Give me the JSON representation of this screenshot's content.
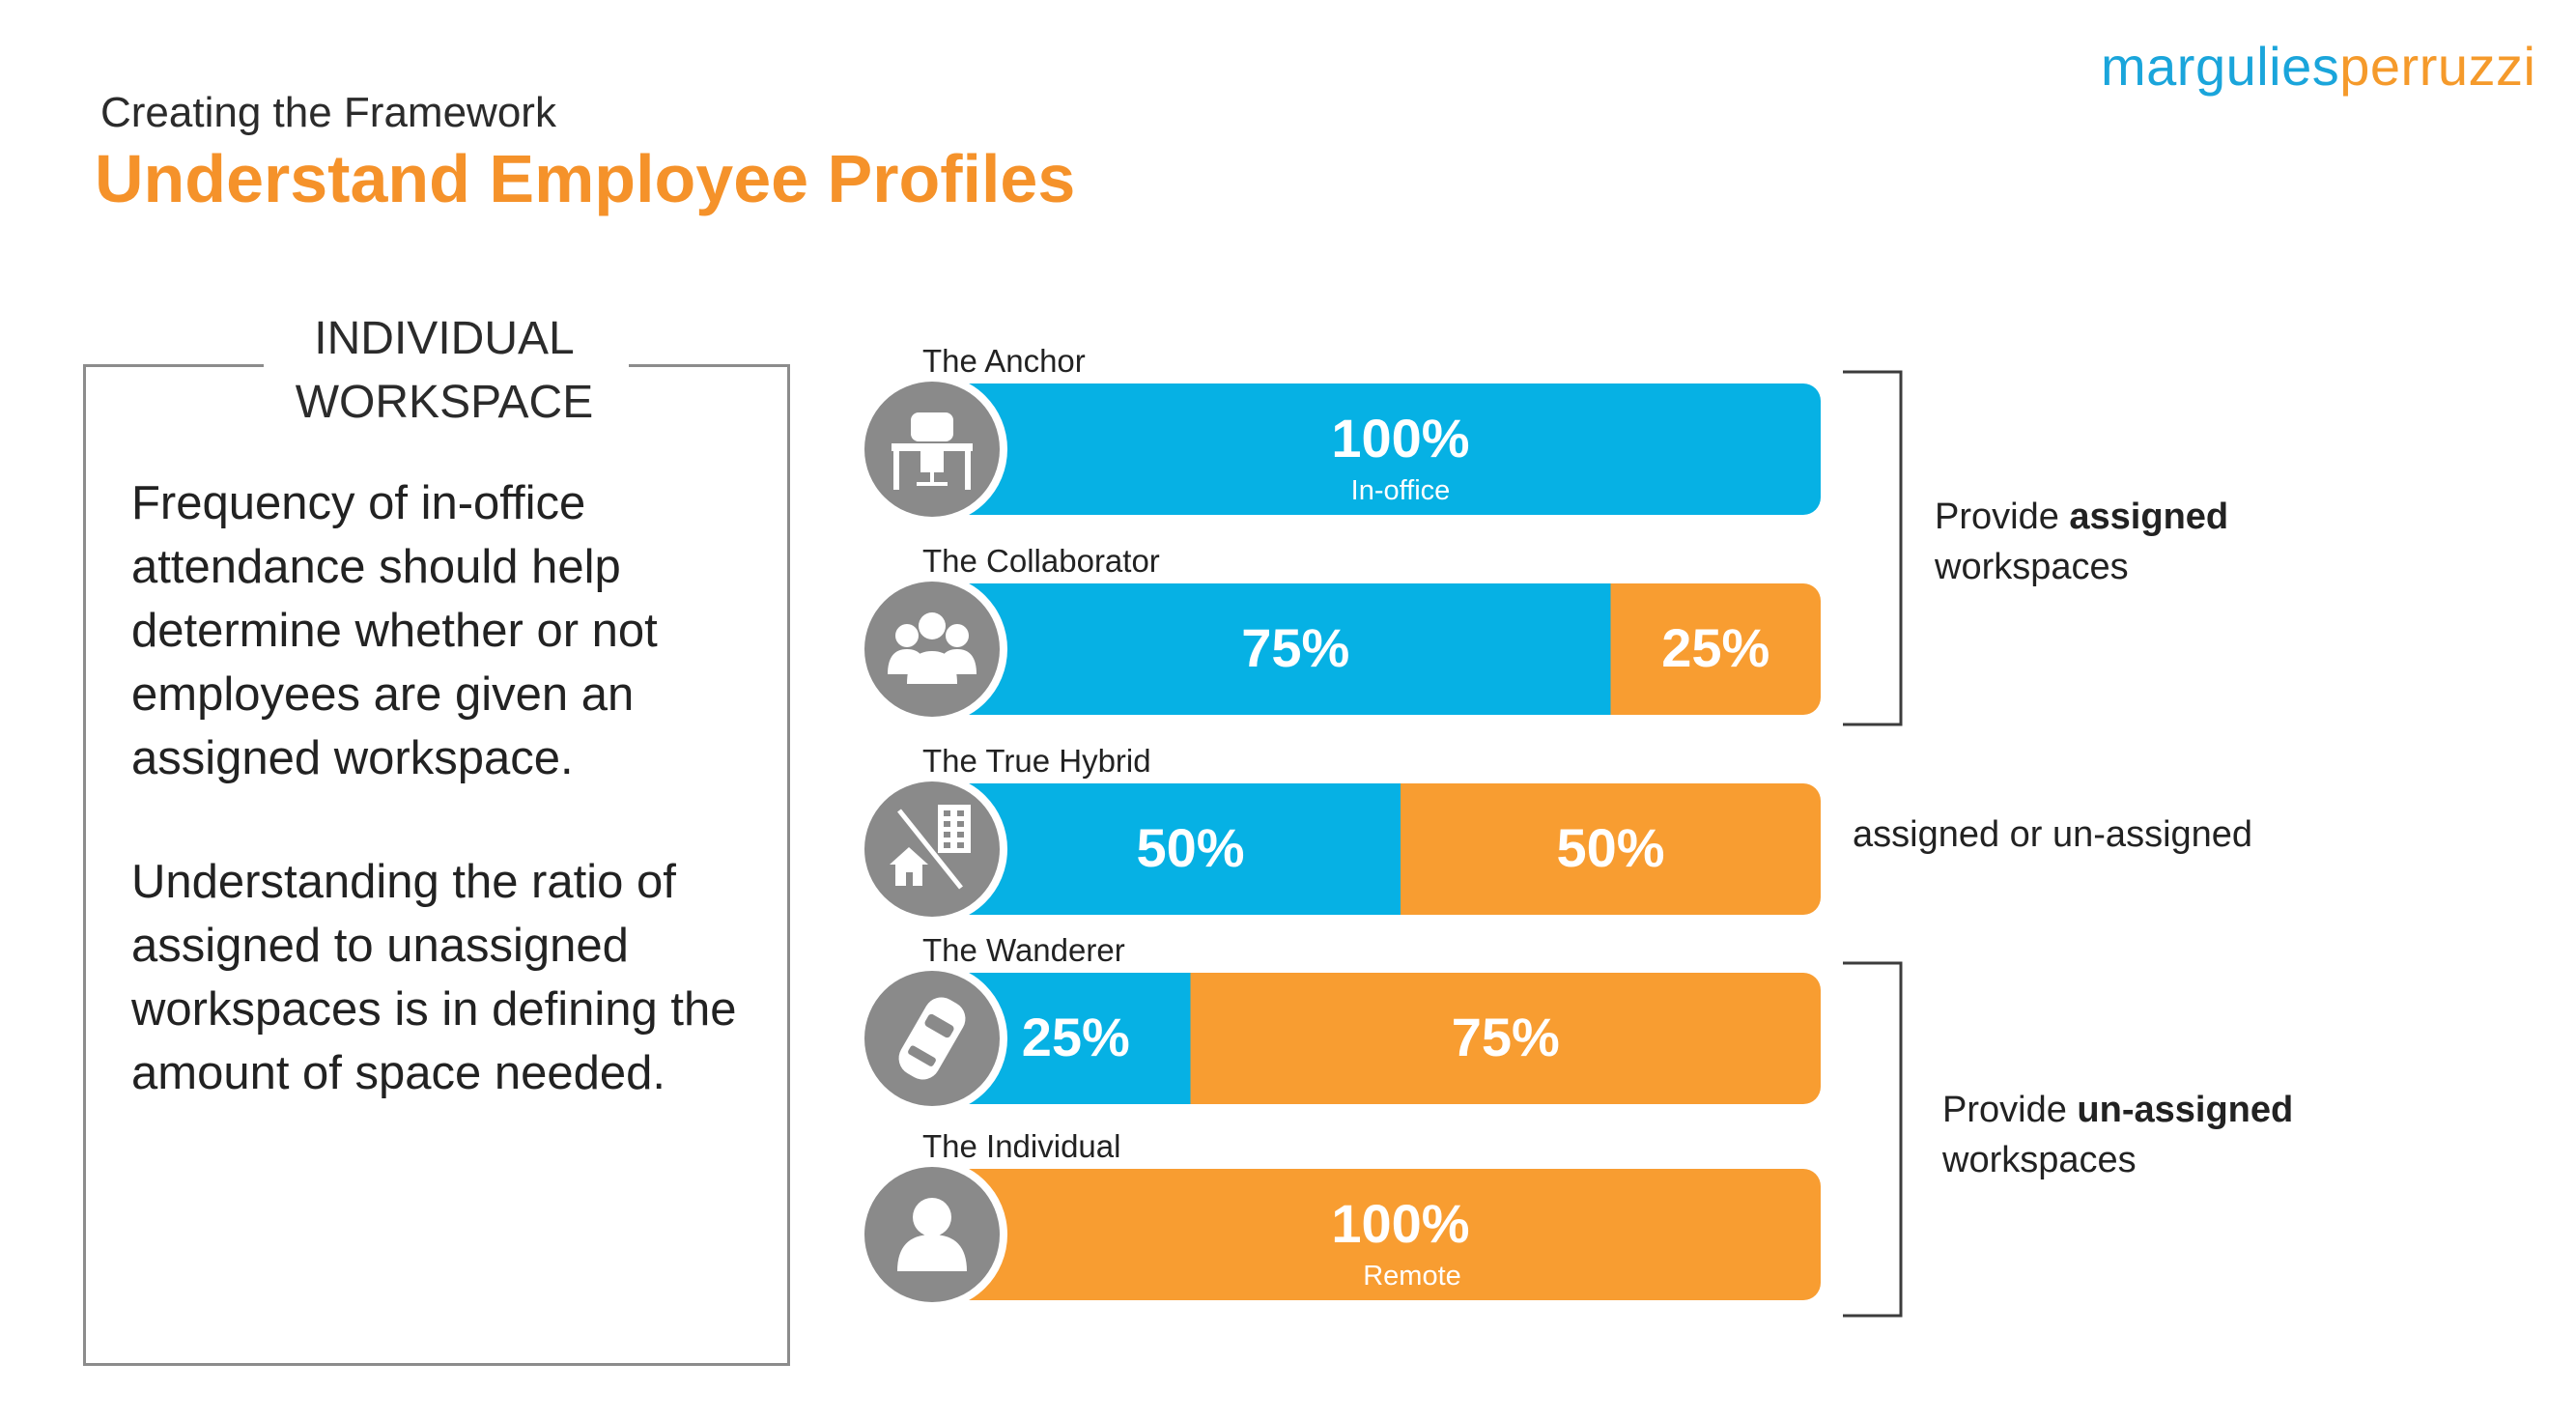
{
  "brand": {
    "part1": "margulies",
    "part2": "perruzzi"
  },
  "header": {
    "subtitle": "Creating the Framework",
    "title": "Understand Employee Profiles"
  },
  "panel": {
    "heading_line1": "INDIVIDUAL",
    "heading_line2": "WORKSPACE",
    "paragraph1": "Frequency of in-office attendance should help determine whether or not employees are given an assigned workspace.",
    "paragraph2": "Understanding the ratio of assigned to unassigned workspaces is in defining the amount of space needed."
  },
  "colors": {
    "in_office": "#06b1e4",
    "remote": "#f89d31",
    "icon_circle": "#8a8a8a",
    "accent_title": "#f5922a",
    "logo_blue": "#1aa5db"
  },
  "chart_data": {
    "type": "bar",
    "orientation": "horizontal",
    "stacked": true,
    "unit": "%",
    "categories": [
      "The Anchor",
      "The Collaborator",
      "The True Hybrid",
      "The Wanderer",
      "The Individual"
    ],
    "icons": [
      "desk-icon",
      "team-icon",
      "hybrid-home-building-icon",
      "car-icon",
      "person-icon"
    ],
    "series": [
      {
        "name": "In-office",
        "values": [
          100,
          75,
          50,
          25,
          0
        ]
      },
      {
        "name": "Remote",
        "values": [
          0,
          25,
          50,
          75,
          100
        ]
      }
    ],
    "data_labels": [
      [
        "100%",
        ""
      ],
      [
        "75%",
        "25%"
      ],
      [
        "50%",
        "50%"
      ],
      [
        "25%",
        "75%"
      ],
      [
        "",
        "100%"
      ]
    ],
    "sub_labels": [
      "In-office",
      "",
      "",
      "",
      "Remote"
    ],
    "groups": [
      {
        "prefix": "Provide ",
        "bold": "assigned",
        "suffix": "workspaces",
        "rows": [
          0,
          1
        ]
      },
      {
        "prefix": "assigned or un-assigned",
        "bold": "",
        "suffix": "",
        "rows": [
          2
        ]
      },
      {
        "prefix": "Provide ",
        "bold": "un-assigned",
        "suffix": "workspaces",
        "rows": [
          3,
          4
        ]
      }
    ]
  }
}
